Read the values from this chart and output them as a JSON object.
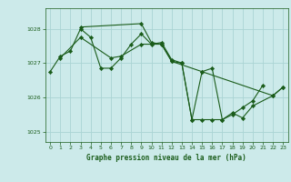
{
  "title": "Graphe pression niveau de la mer (hPa)",
  "bg_color": "#cceaea",
  "grid_color": "#aad4d4",
  "line_color": "#1a5c1a",
  "xlim": [
    -0.5,
    23.5
  ],
  "ylim": [
    1024.7,
    1028.6
  ],
  "yticks": [
    1025,
    1026,
    1027,
    1028
  ],
  "xticks": [
    0,
    1,
    2,
    3,
    4,
    5,
    6,
    7,
    8,
    9,
    10,
    11,
    12,
    13,
    14,
    15,
    16,
    17,
    18,
    19,
    20,
    21,
    22,
    23
  ],
  "line1_x": [
    0,
    1,
    2,
    3,
    4,
    5,
    6,
    7,
    8,
    9,
    10,
    11,
    12,
    13,
    14,
    15,
    16,
    17,
    18,
    19,
    20,
    21
  ],
  "line1_y": [
    1026.75,
    1027.2,
    1027.35,
    1028.0,
    1027.75,
    1026.85,
    1026.85,
    1027.15,
    1027.55,
    1027.85,
    1027.55,
    1027.6,
    1027.1,
    1027.0,
    1025.35,
    1025.35,
    1025.35,
    1025.35,
    1025.5,
    1025.7,
    1025.9,
    1026.35
  ],
  "line2_x": [
    3,
    9,
    10,
    11,
    12,
    13,
    14,
    15,
    22,
    23
  ],
  "line2_y": [
    1028.05,
    1028.15,
    1027.6,
    1027.55,
    1027.05,
    1027.0,
    1025.35,
    1026.75,
    1026.05,
    1026.3
  ],
  "line3_x": [
    1,
    3,
    6,
    7,
    9,
    11,
    12,
    15,
    16,
    17,
    18,
    19,
    20,
    22,
    23
  ],
  "line3_y": [
    1027.15,
    1027.75,
    1027.15,
    1027.2,
    1027.55,
    1027.55,
    1027.05,
    1026.75,
    1026.85,
    1025.35,
    1025.55,
    1025.4,
    1025.75,
    1026.05,
    1026.3
  ]
}
